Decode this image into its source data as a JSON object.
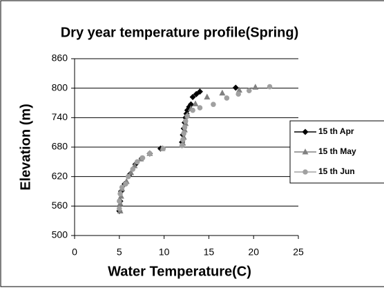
{
  "chart_data": {
    "type": "scatter",
    "title": "Dry year temperature profile(Spring)",
    "x_label": "Water Temperature(C)",
    "y_label": "Elevation (m)",
    "xlim": [
      0,
      25
    ],
    "xticks": [
      0,
      5,
      10,
      15,
      20,
      25
    ],
    "ylim": [
      500,
      860
    ],
    "yticks": [
      500,
      560,
      620,
      680,
      740,
      800,
      860
    ],
    "grid": true,
    "legend": "right",
    "series": [
      {
        "name": "15 th Apr",
        "color": "#000000",
        "marker": "diamond",
        "x": [
          5.0,
          5.1,
          5.2,
          5.6,
          6.2,
          6.8,
          7.5,
          8.4,
          9.6,
          12.0,
          12.1,
          12.2,
          12.3,
          12.4,
          12.5,
          12.6,
          12.8,
          13.0,
          13.2,
          13.6,
          14.0,
          18.0
        ],
        "values": [
          550,
          570,
          590,
          605,
          625,
          645,
          657,
          667,
          677,
          690,
          705,
          718,
          730,
          740,
          748,
          755,
          762,
          767,
          782,
          788,
          793,
          801
        ]
      },
      {
        "name": "15 th May",
        "color": "#808080",
        "marker": "triangle",
        "x": [
          5.1,
          5.1,
          5.2,
          5.3,
          5.8,
          6.3,
          6.7,
          7.4,
          8.4,
          9.8,
          12.1,
          12.2,
          12.3,
          12.4,
          12.6,
          13.0,
          13.5,
          14.8,
          16.5,
          18.4,
          20.2
        ],
        "values": [
          550,
          565,
          580,
          595,
          610,
          628,
          642,
          656,
          667,
          677,
          688,
          700,
          715,
          728,
          745,
          758,
          768,
          782,
          790,
          796,
          802
        ]
      },
      {
        "name": "15 th Jun",
        "color": "#a0a0a0",
        "marker": "circle",
        "x": [
          5.0,
          5.0,
          5.1,
          5.3,
          5.7,
          6.0,
          6.5,
          7.0,
          7.6,
          8.4,
          9.9,
          12.0,
          12.1,
          12.2,
          12.3,
          12.4,
          12.6,
          13.2,
          14.0,
          15.5,
          17.0,
          18.3,
          19.5,
          21.8
        ],
        "values": [
          555,
          570,
          585,
          598,
          605,
          620,
          635,
          650,
          658,
          667,
          677,
          683,
          695,
          708,
          720,
          733,
          743,
          755,
          760,
          767,
          780,
          788,
          795,
          803
        ]
      }
    ]
  }
}
